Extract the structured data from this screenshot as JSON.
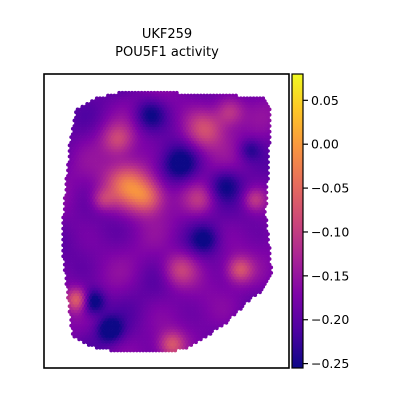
{
  "chart_data": {
    "type": "heatmap",
    "title_lines": [
      "UKF259",
      "POU5F1 activity"
    ],
    "xlabel": "",
    "ylabel": "",
    "colormap": "plasma",
    "color_range": [
      -0.255,
      0.08
    ],
    "colorbar": {
      "ticks": [
        0.05,
        0.0,
        -0.05,
        -0.1,
        -0.15,
        -0.2,
        -0.25
      ],
      "tick_labels": [
        "0.05",
        "0.00",
        "−0.05",
        "−0.10",
        "−0.15",
        "−0.20",
        "−0.25"
      ]
    },
    "axes_ticks": "none",
    "grid": false
  }
}
